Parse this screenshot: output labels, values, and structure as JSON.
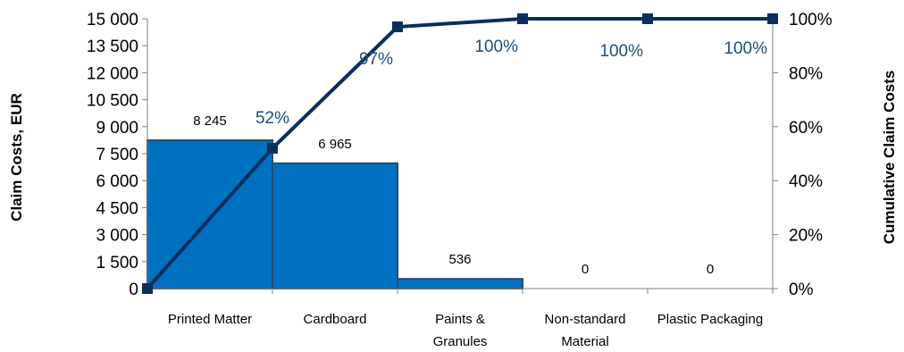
{
  "chart_data": {
    "type": "bar",
    "categories": [
      [
        "Printed Matter"
      ],
      [
        "Cardboard"
      ],
      [
        "Paints &",
        "Granules"
      ],
      [
        "Non-standard",
        "Material"
      ],
      [
        "Plastic Packaging"
      ]
    ],
    "values": [
      8245,
      6965,
      536,
      0,
      0
    ],
    "value_labels": [
      "8 245",
      "6 965",
      "536",
      "0",
      "0"
    ],
    "cumulative_percent": [
      52,
      97,
      100,
      100,
      100
    ],
    "cumulative_labels": [
      "52%",
      "97%",
      "100%",
      "100%",
      "100%"
    ],
    "ylabel": "Claim Costs, EUR",
    "y2label": "Cumulative Claim Costs",
    "ylim": [
      0,
      15000
    ],
    "yticks": [
      0,
      1500,
      3000,
      4500,
      6000,
      7500,
      9000,
      10500,
      12000,
      13500,
      15000
    ],
    "ytick_labels": [
      "0",
      "1 500",
      "3 000",
      "4 500",
      "6 000",
      "7 500",
      "9 000",
      "10 500",
      "12 000",
      "13 500",
      "15 000"
    ],
    "y2lim": [
      0,
      100
    ],
    "y2ticks": [
      0,
      20,
      40,
      60,
      80,
      100
    ],
    "y2tick_labels": [
      "0%",
      "20%",
      "40%",
      "60%",
      "80%",
      "100%"
    ],
    "grid": false,
    "legend": "none",
    "colors": {
      "bar_fill": "#0070C0",
      "bar_stroke": "#1F4E79",
      "line": "#0B2E5C",
      "percent_label": "#1F4E79",
      "axis": "#808080"
    }
  }
}
